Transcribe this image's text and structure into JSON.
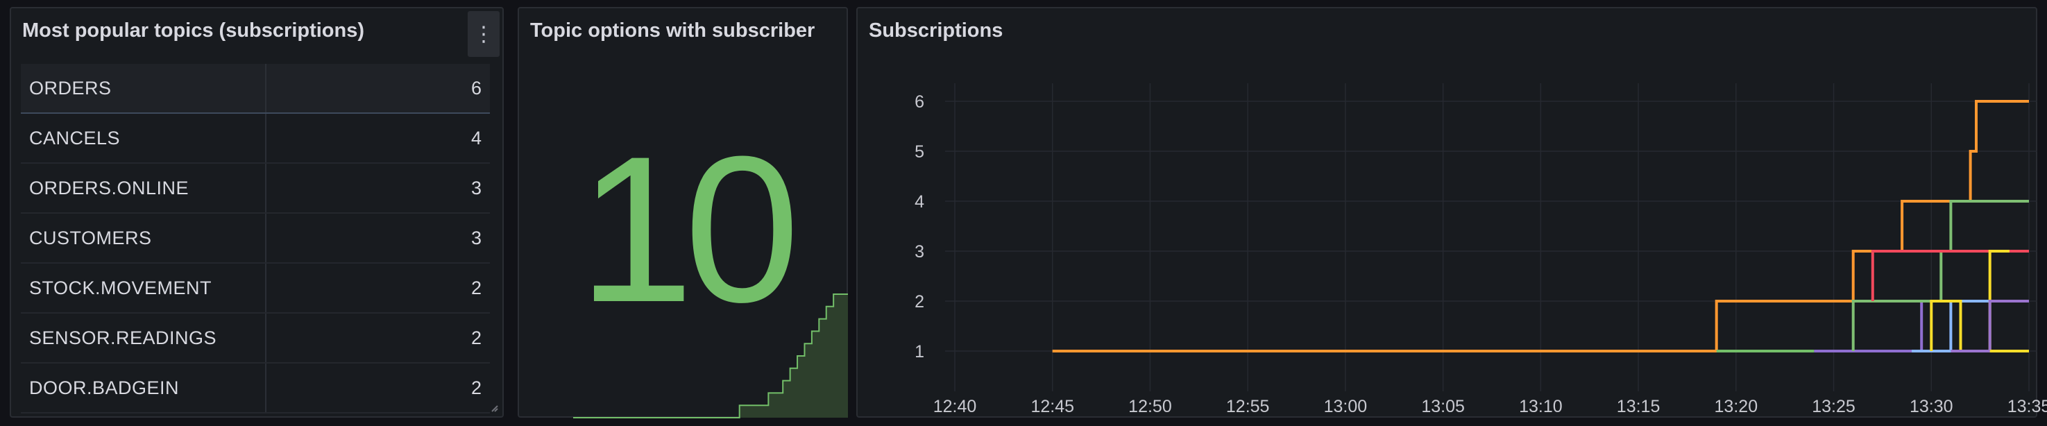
{
  "panels": {
    "table": {
      "title": "Most popular topics (subscriptions)",
      "menu_icon": "kebab-menu-icon",
      "rows": [
        {
          "topic": "ORDERS",
          "count": "6"
        },
        {
          "topic": "CANCELS",
          "count": "4"
        },
        {
          "topic": "ORDERS.ONLINE",
          "count": "3"
        },
        {
          "topic": "CUSTOMERS",
          "count": "3"
        },
        {
          "topic": "STOCK.MOVEMENT",
          "count": "2"
        },
        {
          "topic": "SENSOR.READINGS",
          "count": "2"
        },
        {
          "topic": "DOOR.BADGEIN",
          "count": "2"
        }
      ]
    },
    "stat": {
      "title": "Topic options with subscriber",
      "value": "10",
      "color": "#73bf69",
      "sparkline": [
        0,
        0,
        0,
        0,
        0,
        0,
        0,
        0,
        0,
        0,
        0,
        0,
        0,
        0,
        0,
        0,
        0,
        0,
        0,
        0,
        0,
        0,
        0,
        1,
        1,
        1,
        1,
        2,
        2,
        3,
        4,
        5,
        6,
        7,
        8,
        9,
        10,
        10,
        10
      ]
    },
    "timeseries": {
      "title": "Subscriptions"
    }
  },
  "chart_data": {
    "type": "line",
    "title": "Subscriptions",
    "x_ticks": [
      "12:40",
      "12:45",
      "12:50",
      "12:55",
      "13:00",
      "13:05",
      "13:10",
      "13:15",
      "13:20",
      "13:25",
      "13:30",
      "13:35"
    ],
    "y_ticks": [
      1,
      2,
      3,
      4,
      5,
      6
    ],
    "ylim": [
      0.7,
      6.5
    ],
    "grid": true,
    "legend": "none",
    "series": [
      {
        "color": "#ff9830",
        "points": [
          [
            "12:45",
            1
          ],
          [
            "13:19",
            1
          ],
          [
            "13:19",
            2
          ],
          [
            "13:26",
            2
          ],
          [
            "13:26",
            3
          ],
          [
            "13:28.5",
            3
          ],
          [
            "13:28.5",
            4
          ],
          [
            "13:32",
            4
          ],
          [
            "13:32",
            5
          ],
          [
            "13:32.3",
            5
          ],
          [
            "13:32.3",
            6
          ],
          [
            "13:35",
            6
          ]
        ]
      },
      {
        "color": "#73bf69",
        "points": [
          [
            "13:19",
            1
          ],
          [
            "13:24",
            1
          ]
        ]
      },
      {
        "color": "#8f6fd0",
        "points": [
          [
            "13:24",
            1
          ],
          [
            "13:29.5",
            1
          ],
          [
            "13:29.5",
            2
          ],
          [
            "13:31",
            2
          ]
        ]
      },
      {
        "color": "#7fbf73",
        "points": [
          [
            "13:26",
            1
          ],
          [
            "13:26",
            2
          ],
          [
            "13:30.5",
            2
          ],
          [
            "13:30.5",
            3
          ],
          [
            "13:31",
            3
          ],
          [
            "13:31",
            4
          ],
          [
            "13:35",
            4
          ]
        ]
      },
      {
        "color": "#f2495c",
        "points": [
          [
            "13:27",
            2
          ],
          [
            "13:27",
            3
          ],
          [
            "13:35",
            3
          ]
        ]
      },
      {
        "color": "#8ab8ff",
        "points": [
          [
            "13:29",
            1
          ],
          [
            "13:31",
            1
          ],
          [
            "13:31",
            2
          ],
          [
            "13:35",
            2
          ]
        ]
      },
      {
        "color": "#fade2a",
        "points": [
          [
            "13:30",
            1
          ],
          [
            "13:30",
            2
          ],
          [
            "13:31.5",
            2
          ],
          [
            "13:31.5",
            1
          ],
          [
            "13:33",
            1
          ],
          [
            "13:33",
            3
          ],
          [
            "13:34",
            3
          ]
        ]
      },
      {
        "color": "#9b74cf",
        "points": [
          [
            "13:31",
            1
          ],
          [
            "13:33",
            1
          ],
          [
            "13:33",
            2
          ],
          [
            "13:35",
            2
          ]
        ]
      },
      {
        "color": "#fade2a",
        "points": [
          [
            "13:33",
            1
          ],
          [
            "13:35",
            1
          ]
        ]
      }
    ]
  }
}
